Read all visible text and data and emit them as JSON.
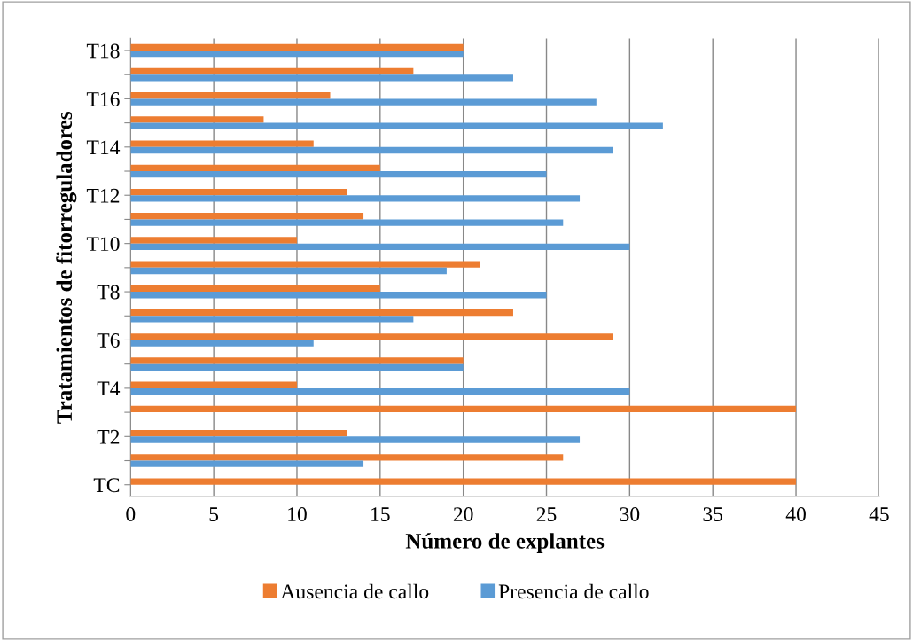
{
  "chart_data": {
    "type": "bar",
    "orientation": "horizontal",
    "xlabel": "Número de explantes",
    "ylabel": "Tratamientos de fitorreguladores",
    "categories": [
      "T18",
      null,
      "T16",
      null,
      "T14",
      null,
      "T12",
      null,
      "T10",
      null,
      "T8",
      null,
      "T6",
      null,
      "T4",
      null,
      "T2",
      null,
      "TC"
    ],
    "series": [
      {
        "name": "Ausencia de callo",
        "color": "#ed7d31",
        "values": [
          20,
          17,
          12,
          8,
          11,
          15,
          13,
          14,
          10,
          21,
          15,
          23,
          29,
          20,
          10,
          40,
          13,
          26,
          40
        ]
      },
      {
        "name": "Presencia de callo",
        "color": "#5b9bd5",
        "values": [
          20,
          23,
          28,
          32,
          29,
          25,
          27,
          26,
          30,
          19,
          25,
          17,
          11,
          20,
          30,
          0,
          27,
          14,
          0
        ]
      }
    ],
    "xlim": [
      0,
      45
    ],
    "xticks": [
      0,
      5,
      10,
      15,
      20,
      25,
      30,
      35,
      40,
      45
    ],
    "grid": "x",
    "legend": "bottom"
  }
}
